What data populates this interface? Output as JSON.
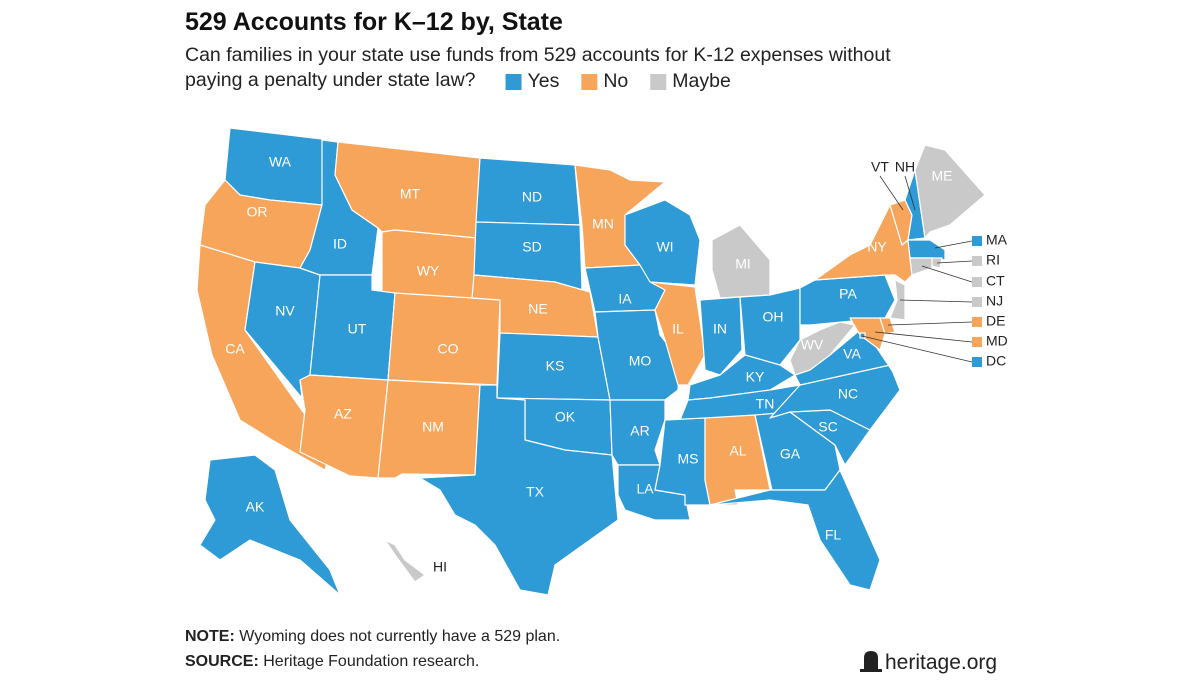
{
  "title": "529 Accounts for K–12 by, State",
  "subtitle": [
    "Can families in your state use funds from 529 accounts for K-12 expenses without",
    "paying a penalty under state law?"
  ],
  "legend": [
    {
      "label": "Yes",
      "color": "#2e9ad6"
    },
    {
      "label": "No",
      "color": "#f7a55a"
    },
    {
      "label": "Maybe",
      "color": "#c9c9c9"
    }
  ],
  "states": [
    {
      "abbr": "WA",
      "answer": "Yes"
    },
    {
      "abbr": "OR",
      "answer": "No"
    },
    {
      "abbr": "CA",
      "answer": "No"
    },
    {
      "abbr": "NV",
      "answer": "Yes"
    },
    {
      "abbr": "ID",
      "answer": "Yes"
    },
    {
      "abbr": "MT",
      "answer": "No"
    },
    {
      "abbr": "WY",
      "answer": "No"
    },
    {
      "abbr": "UT",
      "answer": "Yes"
    },
    {
      "abbr": "CO",
      "answer": "No"
    },
    {
      "abbr": "AZ",
      "answer": "No"
    },
    {
      "abbr": "NM",
      "answer": "No"
    },
    {
      "abbr": "ND",
      "answer": "Yes"
    },
    {
      "abbr": "SD",
      "answer": "Yes"
    },
    {
      "abbr": "NE",
      "answer": "No"
    },
    {
      "abbr": "KS",
      "answer": "Yes"
    },
    {
      "abbr": "OK",
      "answer": "Yes"
    },
    {
      "abbr": "TX",
      "answer": "Yes"
    },
    {
      "abbr": "MN",
      "answer": "No"
    },
    {
      "abbr": "IA",
      "answer": "Yes"
    },
    {
      "abbr": "MO",
      "answer": "Yes"
    },
    {
      "abbr": "AR",
      "answer": "Yes"
    },
    {
      "abbr": "LA",
      "answer": "Yes"
    },
    {
      "abbr": "WI",
      "answer": "Yes"
    },
    {
      "abbr": "IL",
      "answer": "No"
    },
    {
      "abbr": "MI",
      "answer": "Maybe"
    },
    {
      "abbr": "IN",
      "answer": "Yes"
    },
    {
      "abbr": "OH",
      "answer": "Yes"
    },
    {
      "abbr": "KY",
      "answer": "Yes"
    },
    {
      "abbr": "TN",
      "answer": "Yes"
    },
    {
      "abbr": "MS",
      "answer": "Yes"
    },
    {
      "abbr": "AL",
      "answer": "No"
    },
    {
      "abbr": "GA",
      "answer": "Yes"
    },
    {
      "abbr": "FL",
      "answer": "Yes"
    },
    {
      "abbr": "SC",
      "answer": "Yes"
    },
    {
      "abbr": "NC",
      "answer": "Yes"
    },
    {
      "abbr": "VA",
      "answer": "Yes"
    },
    {
      "abbr": "WV",
      "answer": "Maybe"
    },
    {
      "abbr": "PA",
      "answer": "Yes"
    },
    {
      "abbr": "NY",
      "answer": "No"
    },
    {
      "abbr": "VT",
      "answer": "No"
    },
    {
      "abbr": "NH",
      "answer": "Yes"
    },
    {
      "abbr": "ME",
      "answer": "Maybe"
    },
    {
      "abbr": "MA",
      "answer": "Yes"
    },
    {
      "abbr": "RI",
      "answer": "Maybe"
    },
    {
      "abbr": "CT",
      "answer": "Maybe"
    },
    {
      "abbr": "NJ",
      "answer": "Maybe"
    },
    {
      "abbr": "DE",
      "answer": "No"
    },
    {
      "abbr": "MD",
      "answer": "No"
    },
    {
      "abbr": "DC",
      "answer": "Yes"
    },
    {
      "abbr": "AK",
      "answer": "Yes"
    },
    {
      "abbr": "HI",
      "answer": "Maybe"
    }
  ],
  "note": {
    "label": "NOTE:",
    "text": "Wyoming does not currently have a 529 plan."
  },
  "source": {
    "label": "SOURCE:",
    "text": "Heritage Foundation research."
  },
  "logo": "heritage.org"
}
